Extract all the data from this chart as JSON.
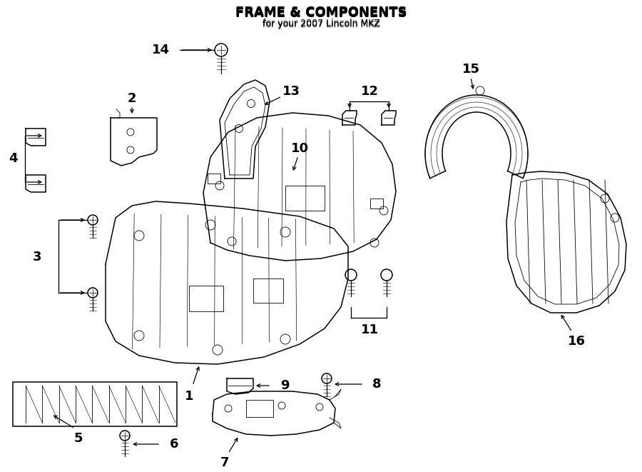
{
  "title": "FRAME & COMPONENTS",
  "subtitle": "for your 2007 Lincoln MKZ",
  "bg_color": "#ffffff",
  "lc": "#000000",
  "lw": 1.1,
  "lt": 0.6,
  "fs": 13,
  "fig_w": 9.0,
  "fig_h": 6.61,
  "dpi": 100
}
